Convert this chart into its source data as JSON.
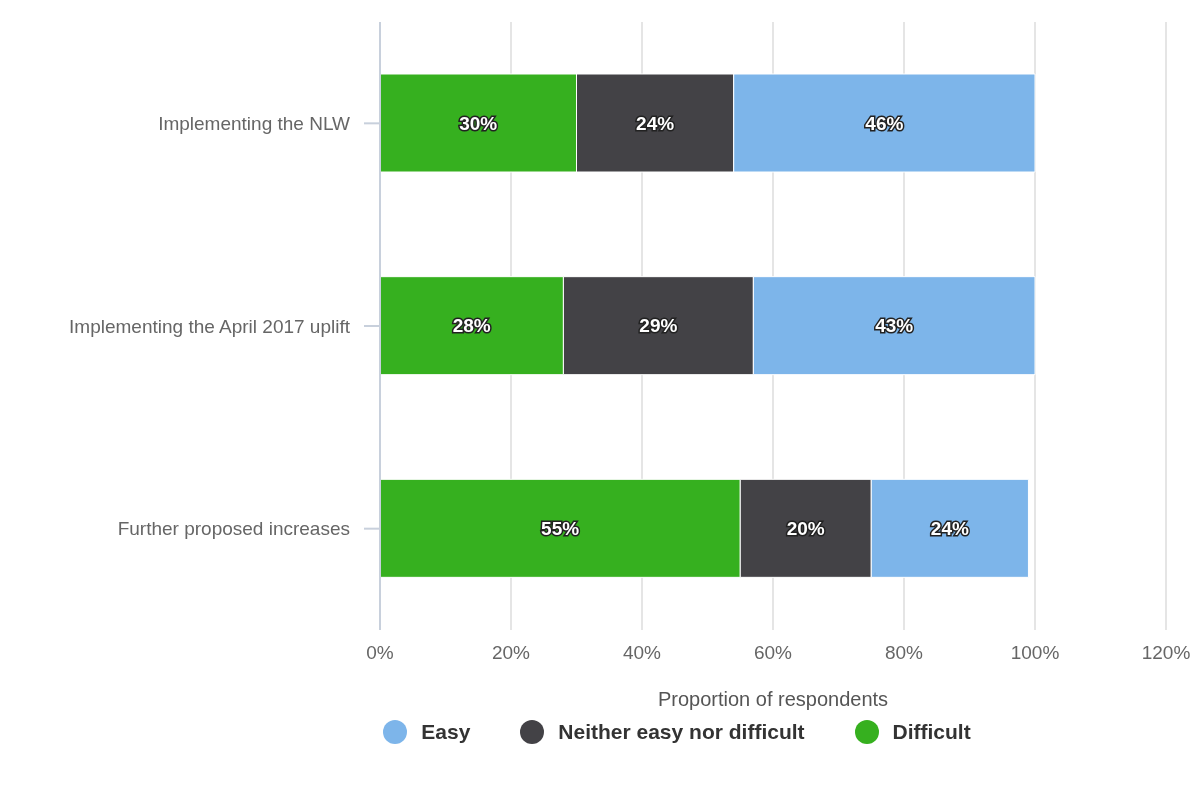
{
  "chart_data": {
    "type": "bar",
    "orientation": "horizontal",
    "stacked": true,
    "xlabel": "Proportion of respondents",
    "categories": [
      "Implementing the NLW",
      "Implementing the April 2017 uplift",
      "Further proposed increases"
    ],
    "series": [
      {
        "name": "Difficult",
        "color": "#36b01f",
        "values": [
          30,
          28,
          55
        ],
        "value_labels": [
          "30%",
          "28%",
          "55%"
        ]
      },
      {
        "name": "Neither easy nor difficult",
        "color": "#434246",
        "values": [
          24,
          29,
          20
        ],
        "value_labels": [
          "24%",
          "29%",
          "20%"
        ]
      },
      {
        "name": "Easy",
        "color": "#7db5ea",
        "values": [
          46,
          43,
          24
        ],
        "value_labels": [
          "46%",
          "43%",
          "24%"
        ]
      }
    ],
    "xlim": [
      0,
      120
    ],
    "xticks": [
      {
        "value": 0,
        "label": "0%"
      },
      {
        "value": 20,
        "label": "20%"
      },
      {
        "value": 40,
        "label": "40%"
      },
      {
        "value": 60,
        "label": "60%"
      },
      {
        "value": 80,
        "label": "80%"
      },
      {
        "value": 100,
        "label": "100%"
      },
      {
        "value": 120,
        "label": "120%"
      }
    ],
    "grid": "x",
    "legend": "bottom"
  }
}
